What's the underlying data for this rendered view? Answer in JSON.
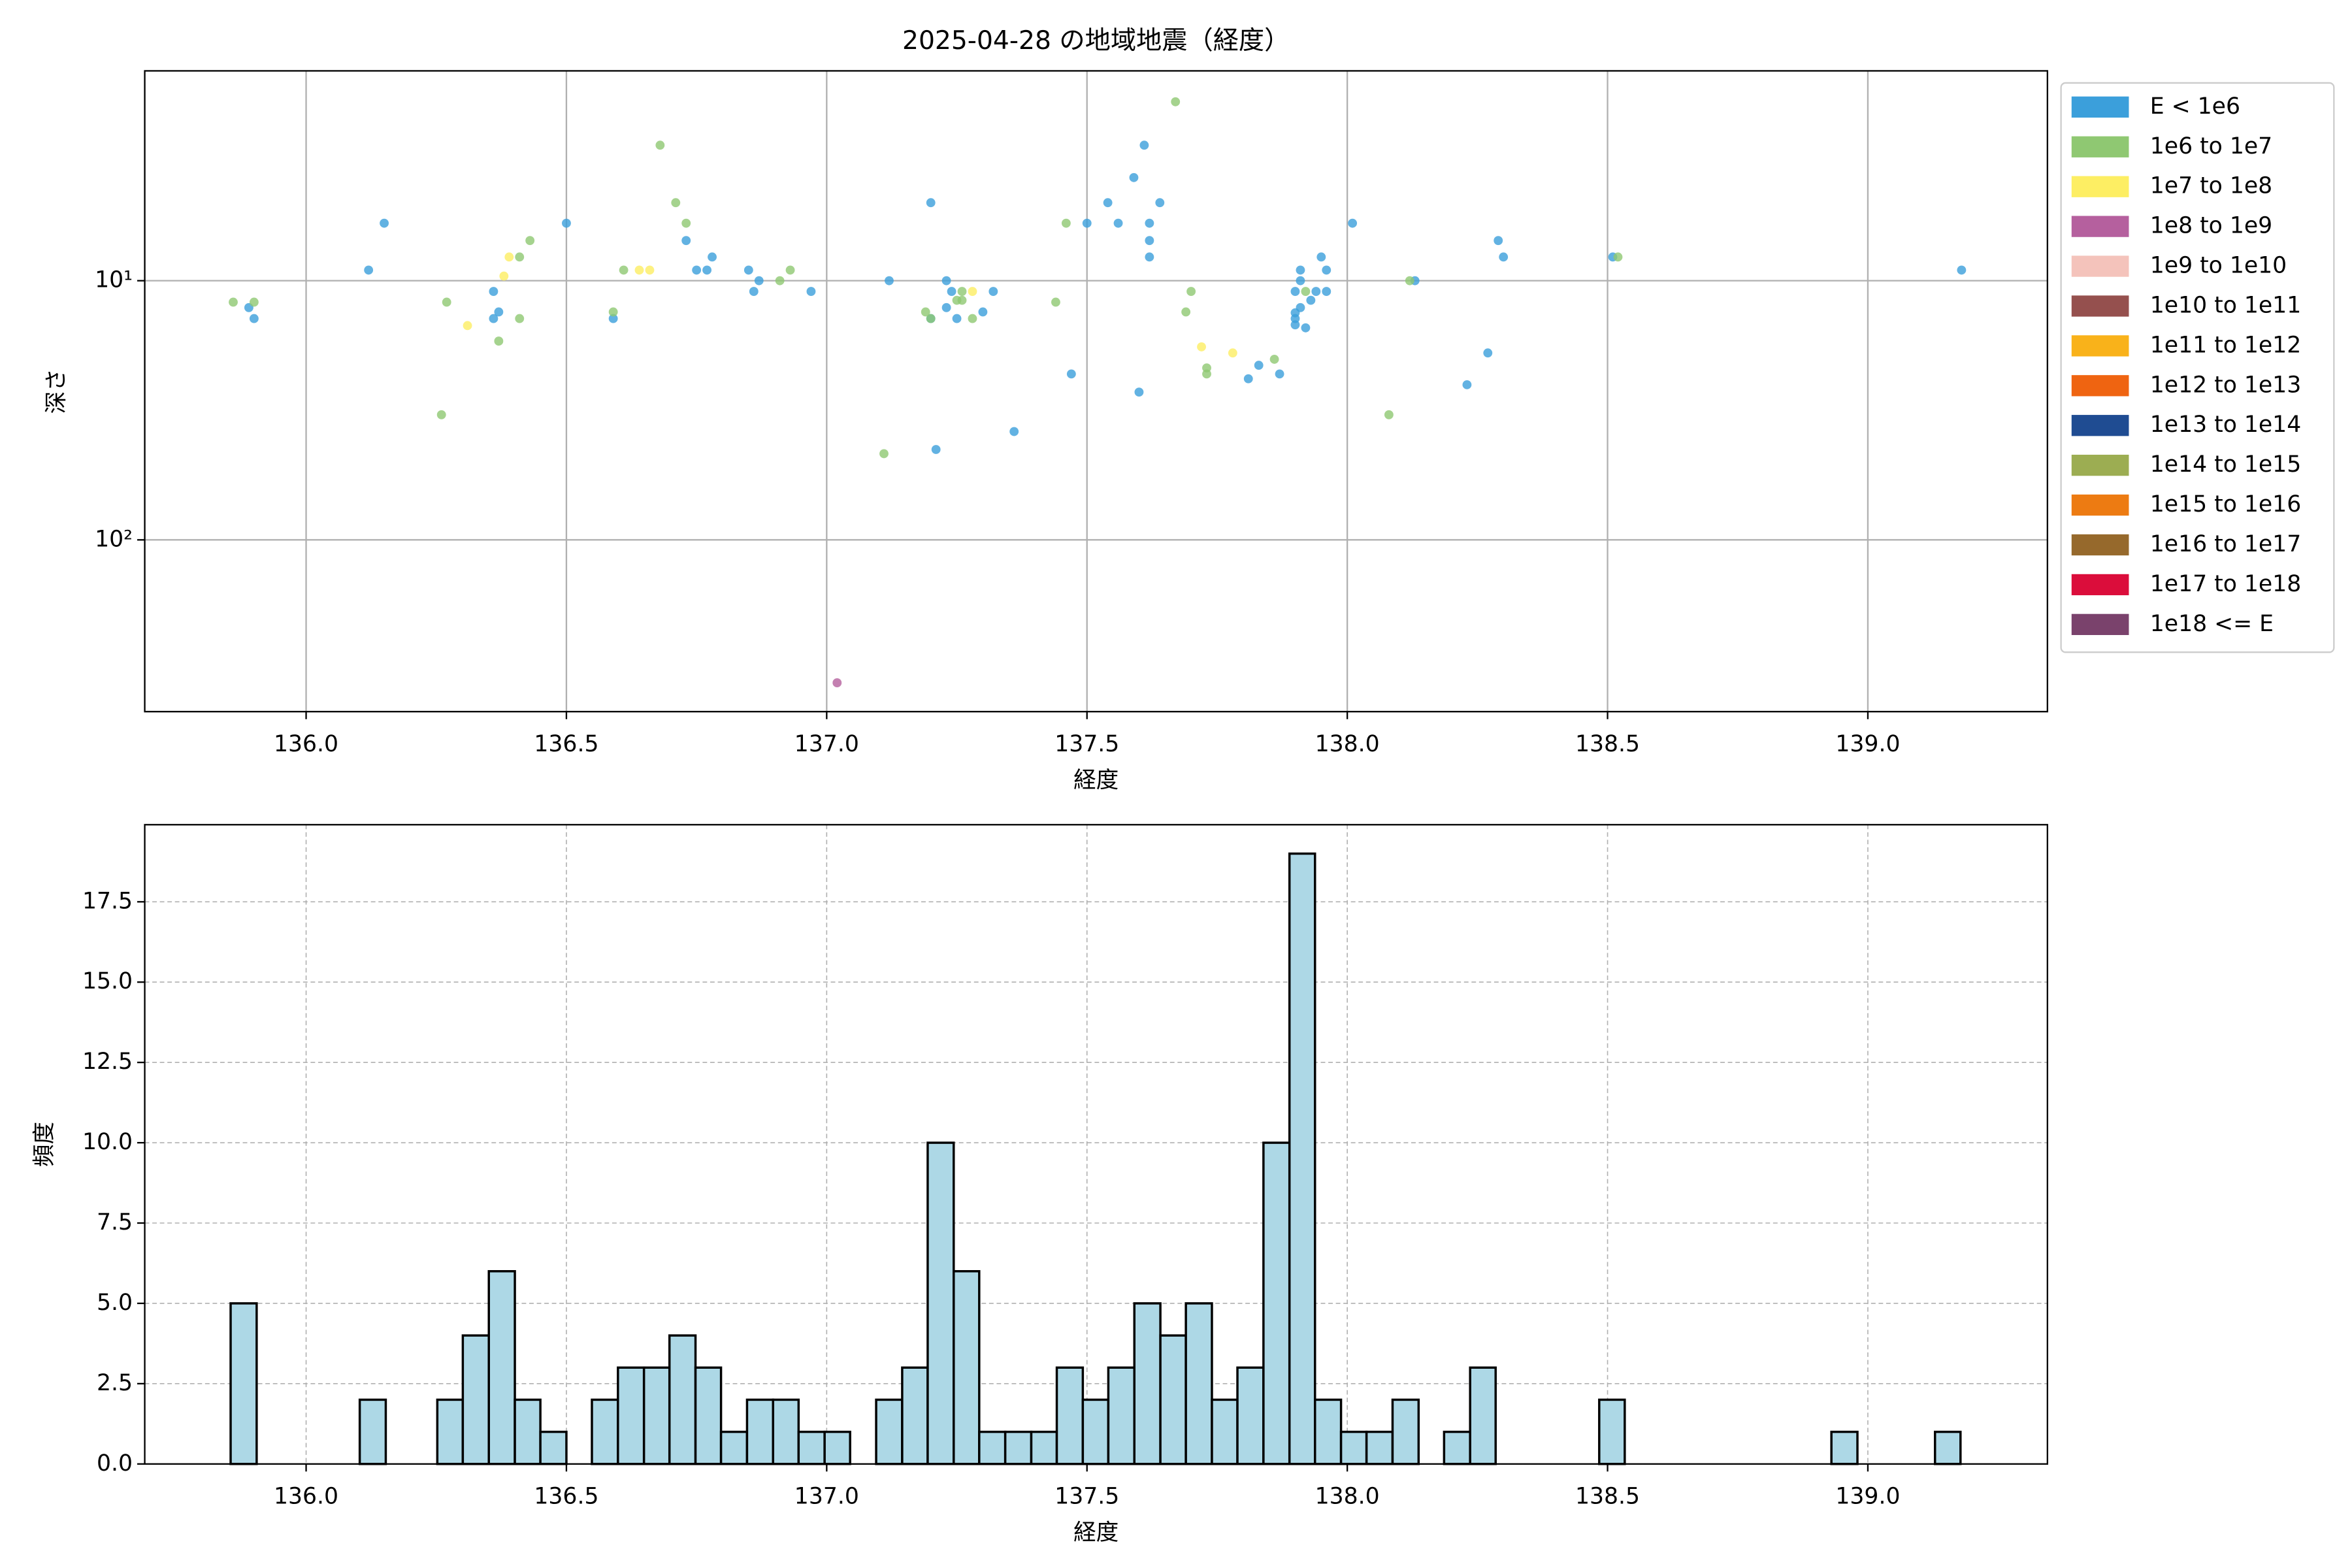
{
  "chart_data": [
    {
      "type": "scatter",
      "title": "2025-04-28 の地域地震（経度）",
      "xlabel": "経度",
      "ylabel": "深さ",
      "xlim": [
        135.69,
        139.345
      ],
      "ylim": [
        1.55,
        460
      ],
      "y_scale": "log",
      "y_inverted": true,
      "grid": "solid",
      "legend": "outside-upper-right",
      "xticks": [
        {
          "value": 136,
          "label": "136.0"
        },
        136.5,
        {
          "value": 137,
          "label": "137.0"
        },
        137.5,
        {
          "value": 138,
          "label": "138.0"
        },
        138.5,
        {
          "value": 139,
          "label": "139.0"
        }
      ],
      "yticks": [
        {
          "value": 10,
          "label": "10¹"
        },
        {
          "value": 100,
          "label": "10²"
        }
      ],
      "series": [
        {
          "name": "E < 1e6",
          "color": "#3b9fdb",
          "x": [
            135.89,
            135.9,
            136.12,
            136.15,
            136.36,
            136.36,
            136.37,
            136.5,
            136.59,
            136.73,
            136.75,
            136.77,
            136.78,
            136.85,
            136.86,
            136.87,
            136.97,
            137.12,
            137.2,
            137.2,
            137.21,
            137.23,
            137.23,
            137.24,
            137.25,
            137.3,
            137.32,
            137.36,
            137.47,
            137.5,
            137.54,
            137.56,
            137.59,
            137.6,
            137.61,
            137.62,
            137.62,
            137.62,
            137.64,
            137.83,
            137.81,
            137.87,
            137.9,
            137.9,
            137.91,
            137.91,
            137.91,
            137.92,
            137.93,
            137.94,
            137.95,
            137.96,
            137.96,
            138.01,
            138.13,
            138.23,
            138.27,
            138.29,
            138.3,
            138.51,
            139.18,
            137.9,
            137.9
          ],
          "values": [
            12.7,
            14.0,
            9.1,
            6.0,
            14.0,
            11.0,
            13.2,
            6.0,
            14.0,
            7.0,
            9.1,
            9.1,
            8.1,
            9.1,
            11.0,
            10.0,
            11.0,
            10.0,
            5.0,
            14.0,
            44.8,
            10.0,
            12.7,
            11.0,
            14.0,
            13.2,
            11.0,
            38.2,
            22.9,
            6.0,
            5.0,
            6.0,
            4.0,
            26.9,
            3.0,
            6.0,
            7.0,
            8.1,
            5.0,
            21.2,
            23.9,
            22.9,
            11.0,
            14.8,
            10.0,
            9.1,
            12.7,
            15.2,
            11.9,
            11.0,
            8.1,
            9.1,
            11.0,
            6.0,
            10.0,
            25.2,
            19.0,
            7.0,
            8.1,
            8.1,
            9.1,
            14.0,
            13.3
          ]
        },
        {
          "name": "1e6 to 1e7",
          "color": "#8fc872",
          "x": [
            135.86,
            135.9,
            136.26,
            136.27,
            136.37,
            136.41,
            136.41,
            136.43,
            136.59,
            136.61,
            136.68,
            136.71,
            136.73,
            136.91,
            136.93,
            137.11,
            137.19,
            137.2,
            137.25,
            137.26,
            137.26,
            137.28,
            137.44,
            137.46,
            137.67,
            137.7,
            137.69,
            137.73,
            137.73,
            137.86,
            137.92,
            138.08,
            138.12,
            138.52
          ],
          "values": [
            12.1,
            12.1,
            32.9,
            12.1,
            17.1,
            14.0,
            8.1,
            7.0,
            13.2,
            9.1,
            3.0,
            5.0,
            6.0,
            10.0,
            9.1,
            46.5,
            13.2,
            14.0,
            11.9,
            11.0,
            11.9,
            14.0,
            12.1,
            6.0,
            2.04,
            11.0,
            13.2,
            22.9,
            21.7,
            20.1,
            11.0,
            32.9,
            10.0,
            8.1
          ]
        },
        {
          "name": "1e7 to 1e8",
          "color": "#fdee63",
          "x": [
            136.31,
            136.38,
            136.39,
            136.64,
            136.66,
            137.28,
            137.72,
            137.78
          ],
          "values": [
            14.9,
            9.6,
            8.1,
            9.1,
            9.1,
            11.0,
            18.0,
            19.0
          ]
        },
        {
          "name": "1e8 to 1e9",
          "color": "#b5609e",
          "x": [
            137.02
          ],
          "values": [
            356
          ]
        },
        {
          "name": "1e9 to 1e10",
          "color": "#f4c3bb",
          "x": [],
          "values": []
        },
        {
          "name": "1e10 to 1e11",
          "color": "#95504e",
          "x": [],
          "values": []
        },
        {
          "name": "1e11 to 1e12",
          "color": "#f9b21a",
          "x": [],
          "values": []
        },
        {
          "name": "1e12 to 1e13",
          "color": "#ef6411",
          "x": [],
          "values": []
        },
        {
          "name": "1e13 to 1e14",
          "color": "#1f4c92",
          "x": [],
          "values": []
        },
        {
          "name": "1e14 to 1e15",
          "color": "#9cad52",
          "x": [],
          "values": []
        },
        {
          "name": "1e15 to 1e16",
          "color": "#ed7b12",
          "x": [],
          "values": []
        },
        {
          "name": "1e16 to 1e17",
          "color": "#96692c",
          "x": [],
          "values": []
        },
        {
          "name": "1e17 to 1e18",
          "color": "#db0d3b",
          "x": [],
          "values": []
        },
        {
          "name": "1e18 <= E",
          "color": "#7a426c",
          "x": [],
          "values": []
        }
      ]
    },
    {
      "type": "histogram",
      "xlabel": "経度",
      "ylabel": "頻度",
      "color": "#add8e6",
      "edgecolor": "#000000",
      "grid": "dashed",
      "xlim": [
        135.69,
        139.345
      ],
      "ylim": [
        0,
        19.9
      ],
      "xticks": [
        {
          "value": 136,
          "label": "136.0"
        },
        136.5,
        {
          "value": 137,
          "label": "137.0"
        },
        137.5,
        {
          "value": 138,
          "label": "138.0"
        },
        138.5,
        {
          "value": 139,
          "label": "139.0"
        }
      ],
      "yticks": [
        {
          "value": 0,
          "label": "0.0"
        },
        2.5,
        {
          "value": 5,
          "label": "5.0"
        },
        7.5,
        {
          "value": 10,
          "label": "10.0"
        },
        12.5,
        {
          "value": 15,
          "label": "15.0"
        },
        17.5
      ],
      "bins": [
        135.855,
        135.905,
        135.954,
        136.004,
        136.053,
        136.103,
        136.153,
        136.202,
        136.252,
        136.301,
        136.351,
        136.401,
        136.45,
        136.5,
        136.549,
        136.599,
        136.649,
        136.698,
        136.748,
        136.797,
        136.847,
        136.897,
        136.946,
        136.996,
        137.045,
        137.095,
        137.145,
        137.194,
        137.244,
        137.293,
        137.343,
        137.393,
        137.442,
        137.492,
        137.541,
        137.591,
        137.641,
        137.69,
        137.74,
        137.789,
        137.839,
        137.889,
        137.938,
        137.988,
        138.037,
        138.087,
        138.137,
        138.186,
        138.236,
        138.285,
        138.335,
        138.385,
        138.434,
        138.484,
        138.533,
        138.583,
        138.633,
        138.682,
        138.732,
        138.781,
        138.831,
        138.881,
        138.93,
        138.98,
        139.029,
        139.079,
        139.129,
        139.178
      ],
      "values": [
        5,
        0,
        0,
        0,
        0,
        2,
        0,
        0,
        2,
        4,
        6,
        2,
        1,
        0,
        2,
        3,
        3,
        4,
        3,
        1,
        2,
        2,
        1,
        1,
        0,
        2,
        3,
        10,
        6,
        1,
        1,
        1,
        3,
        2,
        3,
        5,
        4,
        5,
        2,
        3,
        10,
        19,
        2,
        1,
        1,
        2,
        0,
        1,
        3,
        0,
        0,
        0,
        0,
        2,
        0,
        0,
        0,
        0,
        0,
        0,
        0,
        0,
        1,
        0,
        0,
        0,
        1
      ]
    }
  ]
}
